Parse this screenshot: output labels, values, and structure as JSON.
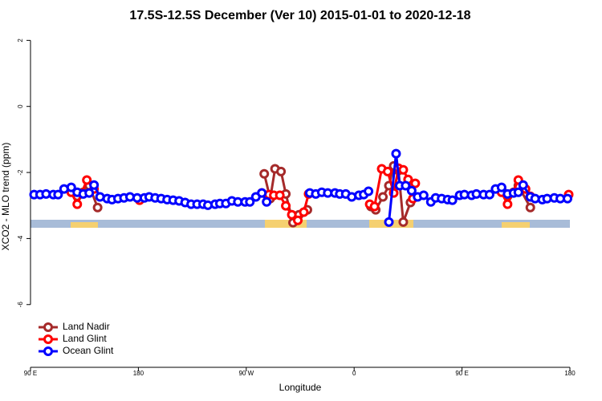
{
  "chart_data": {
    "type": "line",
    "title": "17.5S-12.5S December (Ver 10)   2015-01-01 to 2020-12-18",
    "x_label": "Longitude",
    "y_label": "XCO2 - MLO trend (ppm)",
    "xlim": [
      90,
      540
    ],
    "xticks": [
      {
        "value": 90,
        "label": "90 E"
      },
      {
        "value": 180,
        "label": "180"
      },
      {
        "value": 270,
        "label": "90 W"
      },
      {
        "value": 360,
        "label": "0"
      },
      {
        "value": 450,
        "label": "90 E"
      },
      {
        "value": 540,
        "label": "180"
      }
    ],
    "ylim": [
      -7.9,
      2.3
    ],
    "yticks": [
      -6,
      -4,
      -2,
      0,
      2
    ],
    "legend": "bottom-left",
    "series": [
      {
        "name": "Land Nadir",
        "color": "#a52a2a",
        "x": [
          124,
          129,
          134,
          139,
          146,
          null,
          285,
          290,
          294,
          299,
          303,
          309,
          314,
          321,
          null,
          374,
          378,
          384,
          389,
          393,
          397,
          401,
          407,
          null,
          483,
          488,
          493,
          497,
          507
        ],
        "values": [
          -2.5,
          -2.72,
          -2.6,
          -2.4,
          -3.06,
          null,
          -2.04,
          -2.79,
          -1.89,
          -1.97,
          -2.65,
          -3.52,
          -3.28,
          -3.13,
          null,
          -3.03,
          -3.13,
          -2.74,
          -2.4,
          -1.8,
          -1.94,
          -3.5,
          -2.91,
          null,
          -2.5,
          -2.72,
          -2.6,
          -2.4,
          -3.06
        ]
      },
      {
        "name": "Land Glint",
        "color": "#ff0000",
        "x": [
          124,
          129,
          137,
          143,
          null,
          181,
          null,
          283,
          289,
          293,
          298,
          303,
          308,
          313,
          318,
          322,
          null,
          373,
          377,
          383,
          388,
          393,
          397,
          401,
          405,
          409,
          411,
          null,
          483,
          488,
          497,
          503,
          507,
          null,
          539
        ],
        "values": [
          -2.6,
          -2.96,
          -2.23,
          -2.5,
          null,
          -2.84,
          null,
          -2.62,
          -2.67,
          -2.69,
          -2.69,
          -3.01,
          -3.28,
          -3.45,
          -3.2,
          -2.65,
          null,
          -2.96,
          -3.03,
          -1.89,
          -1.97,
          -2.62,
          -1.87,
          -1.92,
          -2.21,
          -2.79,
          -2.33,
          null,
          -2.6,
          -2.96,
          -2.23,
          -2.5,
          -2.72,
          null,
          -2.67
        ]
      },
      {
        "name": "Ocean Glint",
        "color": "#0000ff",
        "x": [
          93,
          98,
          103,
          109,
          113,
          118,
          124,
          129,
          134,
          139,
          143,
          148,
          154,
          158,
          163,
          168,
          173,
          179,
          185,
          189,
          194,
          199,
          204,
          209,
          214,
          219,
          224,
          229,
          234,
          238,
          244,
          248,
          253,
          258,
          263,
          269,
          273,
          278,
          283,
          287,
          null,
          323,
          328,
          333,
          338,
          344,
          348,
          353,
          358,
          364,
          368,
          372,
          null,
          389,
          395,
          398,
          403,
          408,
          413,
          418,
          424,
          428,
          433,
          438,
          442,
          448,
          452,
          458,
          462,
          468,
          473,
          478,
          483,
          488,
          493,
          497,
          501,
          507,
          511,
          517,
          521,
          527,
          532,
          538
        ],
        "values": [
          -2.67,
          -2.67,
          -2.65,
          -2.67,
          -2.67,
          -2.5,
          -2.45,
          -2.6,
          -2.65,
          -2.62,
          -2.38,
          -2.74,
          -2.79,
          -2.82,
          -2.79,
          -2.77,
          -2.74,
          -2.77,
          -2.77,
          -2.74,
          -2.77,
          -2.79,
          -2.82,
          -2.84,
          -2.86,
          -2.91,
          -2.96,
          -2.96,
          -2.96,
          -2.99,
          -2.96,
          -2.94,
          -2.94,
          -2.86,
          -2.89,
          -2.89,
          -2.89,
          -2.74,
          -2.62,
          -2.89,
          null,
          -2.62,
          -2.65,
          -2.6,
          -2.62,
          -2.62,
          -2.65,
          -2.65,
          -2.74,
          -2.69,
          -2.67,
          -2.57,
          null,
          -3.5,
          -1.43,
          -2.4,
          -2.4,
          -2.55,
          -2.74,
          -2.69,
          -2.89,
          -2.77,
          -2.79,
          -2.82,
          -2.84,
          -2.69,
          -2.67,
          -2.69,
          -2.65,
          -2.67,
          -2.67,
          -2.5,
          -2.45,
          -2.65,
          -2.62,
          -2.6,
          -2.38,
          -2.74,
          -2.79,
          -2.82,
          -2.79,
          -2.77,
          -2.79,
          -2.79
        ]
      }
    ]
  }
}
